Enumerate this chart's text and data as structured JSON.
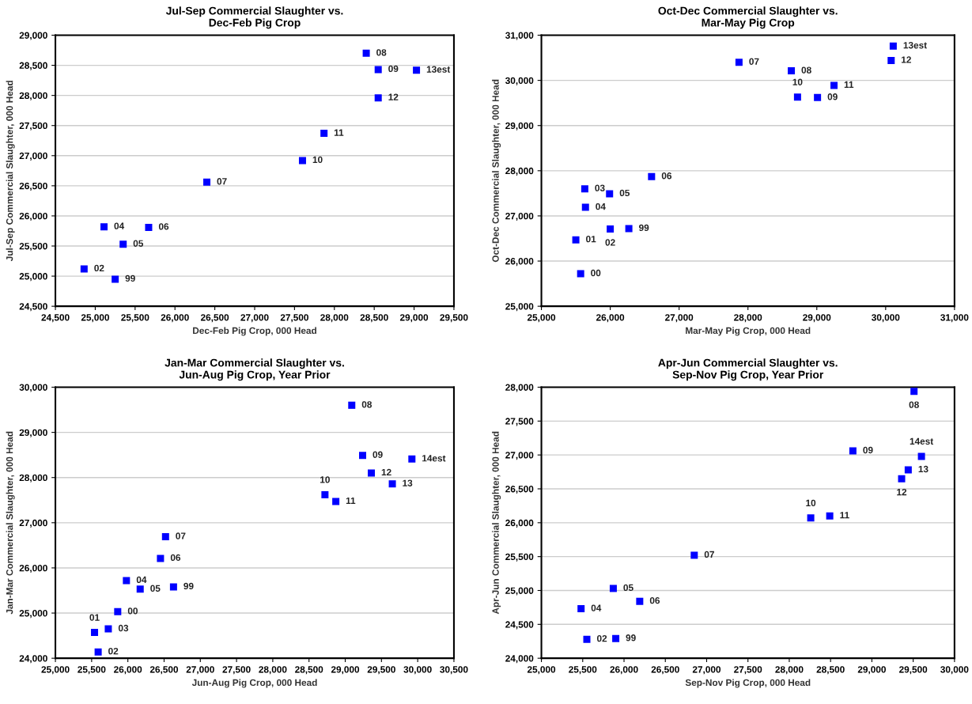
{
  "chart_data": [
    {
      "type": "scatter",
      "title": "Jul-Sep Commercial Slaughter vs.\nDec-Feb Pig Crop",
      "xlabel": "Dec-Feb Pig Crop, 000 Head",
      "ylabel": "Jul-Sep Commercial Slaughter, 000 Head",
      "marker": "square",
      "grid": "y",
      "xlim": [
        24500,
        29500
      ],
      "xticks": [
        {
          "value": 24500,
          "label": "24,500"
        },
        {
          "value": 25000,
          "label": "25,000"
        },
        {
          "value": 25500,
          "label": "25,500"
        },
        {
          "value": 26000,
          "label": "26,000"
        },
        {
          "value": 26500,
          "label": "26,500"
        },
        {
          "value": 27000,
          "label": "27,000"
        },
        {
          "value": 27500,
          "label": "27,500"
        },
        {
          "value": 28000,
          "label": "28,000"
        },
        {
          "value": 28500,
          "label": "28,500"
        },
        {
          "value": 29000,
          "label": "29,000"
        },
        {
          "value": 29500,
          "label": "29,500"
        }
      ],
      "ylim": [
        24500,
        29000
      ],
      "yticks": [
        {
          "value": 24500,
          "label": "24,500"
        },
        {
          "value": 25000,
          "label": "25,000"
        },
        {
          "value": 25500,
          "label": "25,500"
        },
        {
          "value": 26000,
          "label": "26,000"
        },
        {
          "value": 26500,
          "label": "26,500"
        },
        {
          "value": 27000,
          "label": "27,000"
        },
        {
          "value": 27500,
          "label": "27,500"
        },
        {
          "value": 28000,
          "label": "28,000"
        },
        {
          "value": 28500,
          "label": "28,500"
        },
        {
          "value": 29000,
          "label": "29,000"
        }
      ],
      "series": [
        {
          "color": "#0000ff",
          "x": [
            28400,
            28550,
            29030,
            28550,
            27870,
            27600,
            26400,
            25110,
            25670,
            25350,
            24860,
            25250
          ],
          "values": [
            28700,
            28430,
            28420,
            27960,
            27370,
            26920,
            26560,
            25820,
            25810,
            25530,
            25120,
            24950
          ]
        }
      ],
      "annotations": [
        {
          "text": "08",
          "x": 28400,
          "y": 28700
        },
        {
          "text": "09",
          "x": 28550,
          "y": 28430
        },
        {
          "text": "13est",
          "x": 29030,
          "y": 28420
        },
        {
          "text": "12",
          "x": 28550,
          "y": 27960
        },
        {
          "text": "11",
          "x": 27870,
          "y": 27370
        },
        {
          "text": "10",
          "x": 27600,
          "y": 26920
        },
        {
          "text": "07",
          "x": 26400,
          "y": 26560
        },
        {
          "text": "04",
          "x": 25110,
          "y": 25820
        },
        {
          "text": "06",
          "x": 25670,
          "y": 25810
        },
        {
          "text": "05",
          "x": 25350,
          "y": 25530
        },
        {
          "text": "02",
          "x": 24860,
          "y": 25120
        },
        {
          "text": "99",
          "x": 25250,
          "y": 24950
        }
      ]
    },
    {
      "type": "scatter",
      "title": "Oct-Dec Commercial Slaughter vs.\nMar-May Pig Crop",
      "xlabel": "Mar-May Pig Crop, 000 Head",
      "ylabel": "Oct-Dec Commercial Slaughter, 000 Head",
      "marker": "square",
      "grid": "y",
      "xlim": [
        25000,
        31000
      ],
      "xticks": [
        {
          "value": 25000,
          "label": "25,000"
        },
        {
          "value": 26000,
          "label": "26,000"
        },
        {
          "value": 27000,
          "label": "27,000"
        },
        {
          "value": 28000,
          "label": "28,000"
        },
        {
          "value": 29000,
          "label": "29,000"
        },
        {
          "value": 30000,
          "label": "30,000"
        },
        {
          "value": 31000,
          "label": "31,000"
        }
      ],
      "ylim": [
        25000,
        31000
      ],
      "yticks": [
        {
          "value": 25000,
          "label": "25,000"
        },
        {
          "value": 26000,
          "label": "26,000"
        },
        {
          "value": 27000,
          "label": "27,000"
        },
        {
          "value": 28000,
          "label": "28,000"
        },
        {
          "value": 29000,
          "label": "29,000"
        },
        {
          "value": 30000,
          "label": "30,000"
        },
        {
          "value": 31000,
          "label": "31,000"
        }
      ],
      "series": [
        {
          "color": "#0000ff",
          "x": [
            30110,
            30080,
            27870,
            28630,
            29250,
            28720,
            29010,
            26600,
            25630,
            25990,
            25640,
            26000,
            26270,
            25500,
            25570
          ],
          "values": [
            30760,
            30440,
            30400,
            30210,
            29890,
            29630,
            29620,
            27870,
            27600,
            27490,
            27190,
            26710,
            26720,
            26470,
            25720
          ]
        }
      ],
      "annotations": [
        {
          "text": "13est",
          "x": 30110,
          "y": 30760
        },
        {
          "text": "12",
          "x": 30080,
          "y": 30440
        },
        {
          "text": "07",
          "x": 27870,
          "y": 30400
        },
        {
          "text": "08",
          "x": 28630,
          "y": 30210
        },
        {
          "text": "11",
          "x": 29250,
          "y": 29890
        },
        {
          "text": "10",
          "x": 28720,
          "y": 29630
        },
        {
          "text": "09",
          "x": 29010,
          "y": 29620
        },
        {
          "text": "06",
          "x": 26600,
          "y": 27870
        },
        {
          "text": "03",
          "x": 25630,
          "y": 27600
        },
        {
          "text": "05",
          "x": 25990,
          "y": 27490
        },
        {
          "text": "04",
          "x": 25640,
          "y": 27190
        },
        {
          "text": "02",
          "x": 26000,
          "y": 26710
        },
        {
          "text": "99",
          "x": 26270,
          "y": 26720
        },
        {
          "text": "01",
          "x": 25500,
          "y": 26470
        },
        {
          "text": "00",
          "x": 25570,
          "y": 25720
        }
      ]
    },
    {
      "type": "scatter",
      "title": "Jan-Mar Commercial Slaughter vs.\nJun-Aug Pig Crop, Year Prior",
      "xlabel": "Jun-Aug Pig Crop, 000 Head",
      "ylabel": "Jan-Mar Commercial Slaughter, 000 Head",
      "marker": "square",
      "grid": "y",
      "xlim": [
        25000,
        30500
      ],
      "xticks": [
        {
          "value": 25000,
          "label": "25,000"
        },
        {
          "value": 25500,
          "label": "25,500"
        },
        {
          "value": 26000,
          "label": "26,000"
        },
        {
          "value": 26500,
          "label": "26,500"
        },
        {
          "value": 27000,
          "label": "27,000"
        },
        {
          "value": 27500,
          "label": "27,500"
        },
        {
          "value": 28000,
          "label": "28,000"
        },
        {
          "value": 28500,
          "label": "28,500"
        },
        {
          "value": 29000,
          "label": "29,000"
        },
        {
          "value": 29500,
          "label": "29,500"
        },
        {
          "value": 30000,
          "label": "30,000"
        },
        {
          "value": 30500,
          "label": "30,500"
        }
      ],
      "ylim": [
        24000,
        30000
      ],
      "yticks": [
        {
          "value": 24000,
          "label": "24,000"
        },
        {
          "value": 25000,
          "label": "25,000"
        },
        {
          "value": 26000,
          "label": "26,000"
        },
        {
          "value": 27000,
          "label": "27,000"
        },
        {
          "value": 28000,
          "label": "28,000"
        },
        {
          "value": 29000,
          "label": "29,000"
        },
        {
          "value": 30000,
          "label": "30,000"
        }
      ],
      "series": [
        {
          "color": "#0000ff",
          "x": [
            29090,
            29240,
            29920,
            29360,
            29650,
            28720,
            28870,
            26520,
            26450,
            25980,
            26170,
            26630,
            25860,
            25540,
            25730,
            25590
          ],
          "values": [
            29600,
            28490,
            28410,
            28100,
            27860,
            27620,
            27470,
            26690,
            26210,
            25720,
            25530,
            25580,
            25030,
            24570,
            24650,
            24140
          ]
        }
      ],
      "annotations": [
        {
          "text": "08",
          "x": 29090,
          "y": 29600
        },
        {
          "text": "09",
          "x": 29240,
          "y": 28490
        },
        {
          "text": "14est",
          "x": 29920,
          "y": 28410
        },
        {
          "text": "12",
          "x": 29360,
          "y": 28100
        },
        {
          "text": "13",
          "x": 29650,
          "y": 27860
        },
        {
          "text": "10",
          "x": 28720,
          "y": 27620
        },
        {
          "text": "11",
          "x": 28870,
          "y": 27470
        },
        {
          "text": "07",
          "x": 26520,
          "y": 26690
        },
        {
          "text": "06",
          "x": 26450,
          "y": 26210
        },
        {
          "text": "04",
          "x": 25980,
          "y": 25720
        },
        {
          "text": "05",
          "x": 26170,
          "y": 25530
        },
        {
          "text": "99",
          "x": 26630,
          "y": 25580
        },
        {
          "text": "00",
          "x": 25860,
          "y": 25030
        },
        {
          "text": "01",
          "x": 25540,
          "y": 24570
        },
        {
          "text": "03",
          "x": 25730,
          "y": 24650
        },
        {
          "text": "02",
          "x": 25590,
          "y": 24140
        }
      ]
    },
    {
      "type": "scatter",
      "title": "Apr-Jun Commercial Slaughter vs.\nSep-Nov Pig Crop, Year Prior",
      "xlabel": "Sep-Nov Pig Crop, 000 Head",
      "ylabel": "Apr-Jun Commercial Slaughter, 000 Head",
      "marker": "square",
      "grid": "y",
      "xlim": [
        25000,
        30000
      ],
      "xticks": [
        {
          "value": 25000,
          "label": "25,000"
        },
        {
          "value": 25500,
          "label": "25,500"
        },
        {
          "value": 26000,
          "label": "26,000"
        },
        {
          "value": 26500,
          "label": "26,500"
        },
        {
          "value": 27000,
          "label": "27,000"
        },
        {
          "value": 27500,
          "label": "27,500"
        },
        {
          "value": 28000,
          "label": "28,000"
        },
        {
          "value": 28500,
          "label": "28,500"
        },
        {
          "value": 29000,
          "label": "29,000"
        },
        {
          "value": 29500,
          "label": "29,500"
        },
        {
          "value": 30000,
          "label": "30,000"
        }
      ],
      "ylim": [
        24000,
        28000
      ],
      "yticks": [
        {
          "value": 24000,
          "label": "24,000"
        },
        {
          "value": 24500,
          "label": "24,500"
        },
        {
          "value": 25000,
          "label": "25,000"
        },
        {
          "value": 25500,
          "label": "25,500"
        },
        {
          "value": 26000,
          "label": "26,000"
        },
        {
          "value": 26500,
          "label": "26,500"
        },
        {
          "value": 27000,
          "label": "27,000"
        },
        {
          "value": 27500,
          "label": "27,500"
        },
        {
          "value": 28000,
          "label": "28,000"
        }
      ],
      "series": [
        {
          "color": "#0000ff",
          "x": [
            29510,
            28770,
            29600,
            29440,
            29360,
            28260,
            28490,
            26850,
            25870,
            26190,
            25480,
            25550,
            25900
          ],
          "values": [
            27940,
            27060,
            26980,
            26780,
            26650,
            26070,
            26100,
            25520,
            25030,
            24840,
            24730,
            24280,
            24290
          ]
        }
      ],
      "annotations": [
        {
          "text": "08",
          "x": 29510,
          "y": 27940
        },
        {
          "text": "09",
          "x": 28770,
          "y": 27060
        },
        {
          "text": "14est",
          "x": 29600,
          "y": 26980
        },
        {
          "text": "13",
          "x": 29440,
          "y": 26780
        },
        {
          "text": "12",
          "x": 29360,
          "y": 26650
        },
        {
          "text": "10",
          "x": 28260,
          "y": 26070
        },
        {
          "text": "11",
          "x": 28490,
          "y": 26100
        },
        {
          "text": "07",
          "x": 26850,
          "y": 25520
        },
        {
          "text": "05",
          "x": 25870,
          "y": 25030
        },
        {
          "text": "06",
          "x": 26190,
          "y": 24840
        },
        {
          "text": "04",
          "x": 25480,
          "y": 24730
        },
        {
          "text": "02",
          "x": 25550,
          "y": 24280
        },
        {
          "text": "99",
          "x": 25900,
          "y": 24290
        }
      ]
    }
  ]
}
